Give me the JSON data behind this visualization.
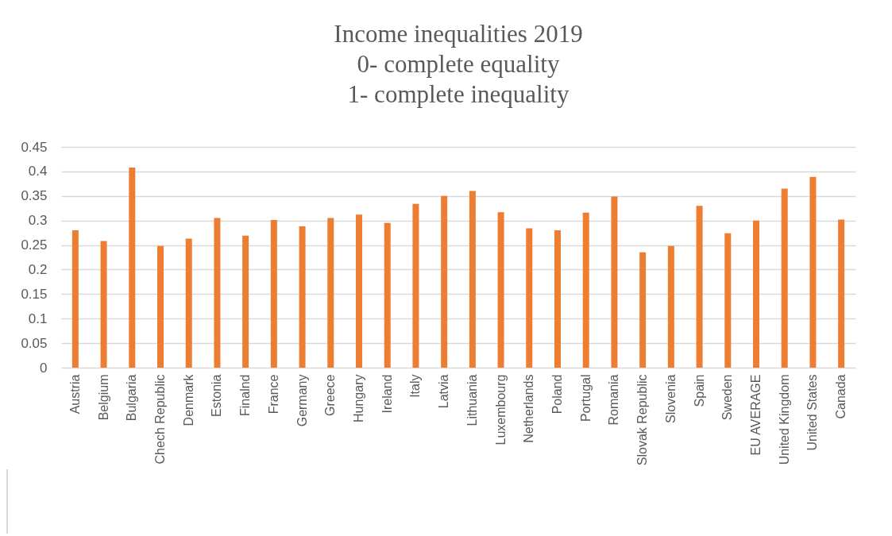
{
  "chart_data": {
    "type": "bar",
    "title": "Income inequalities 2019\n0- complete equality\n1- complete inequality",
    "categories": [
      "Austria",
      "Belgium",
      "Bulgaria",
      "Chech Republic",
      "Denmark",
      "Estonia",
      "Finalnd",
      "France",
      "Germany",
      "Greece",
      "Hungary",
      "Ireland",
      "Italy",
      "Latvia",
      "Lithuania",
      "Luxembourg",
      "Netherlands",
      "Poland",
      "Portugal",
      "Romania",
      "Slovak Republic",
      "Slovenia",
      "Spain",
      "Sweden",
      "EU AVERAGE",
      "United Kingdom",
      "United States",
      "Canada"
    ],
    "values": [
      0.28,
      0.258,
      0.408,
      0.248,
      0.263,
      0.305,
      0.269,
      0.301,
      0.288,
      0.305,
      0.312,
      0.295,
      0.334,
      0.35,
      0.36,
      0.317,
      0.284,
      0.28,
      0.316,
      0.349,
      0.235,
      0.248,
      0.33,
      0.274,
      0.3,
      0.365,
      0.389,
      0.302
    ],
    "color": "#ed7d31",
    "ylim": [
      0,
      0.45
    ],
    "yticks": [
      0,
      0.05,
      0.1,
      0.15,
      0.2,
      0.25,
      0.3,
      0.35,
      0.4,
      0.45
    ],
    "grid": "y"
  }
}
